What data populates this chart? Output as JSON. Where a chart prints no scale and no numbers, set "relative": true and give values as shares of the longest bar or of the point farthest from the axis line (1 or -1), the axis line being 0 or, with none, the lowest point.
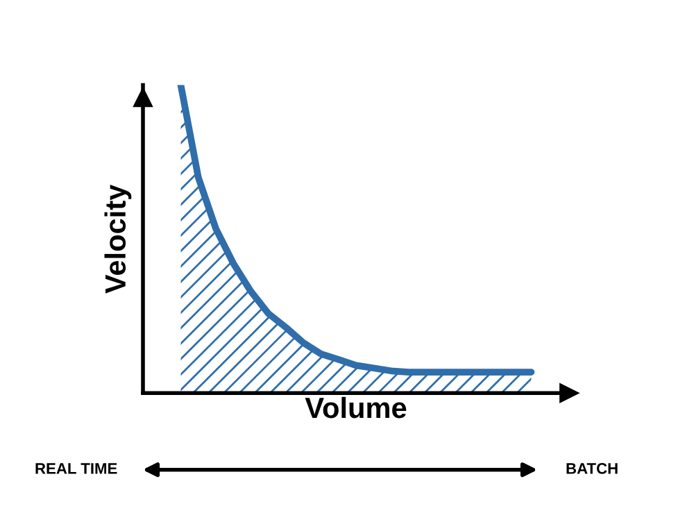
{
  "chart_data": {
    "type": "area",
    "relative": true,
    "xlabel": "Volume",
    "ylabel": "Velocity",
    "categories": [
      null,
      null,
      null,
      null,
      null,
      null,
      null,
      null,
      null,
      null,
      null,
      null,
      null,
      null,
      null,
      null,
      null,
      null,
      null,
      null,
      null
    ],
    "series": [
      {
        "color": "#2f6eaa",
        "values": [
          1.0,
          0.7,
          0.534,
          0.421,
          0.33,
          0.258,
          0.213,
          0.163,
          0.127,
          0.109,
          0.09,
          0.081,
          0.072,
          0.068,
          0.068,
          0.068,
          0.068,
          0.068,
          0.068,
          0.068,
          0.068
        ]
      }
    ],
    "annotations": [
      "REAL TIME",
      "BATCH"
    ],
    "legend": false
  }
}
